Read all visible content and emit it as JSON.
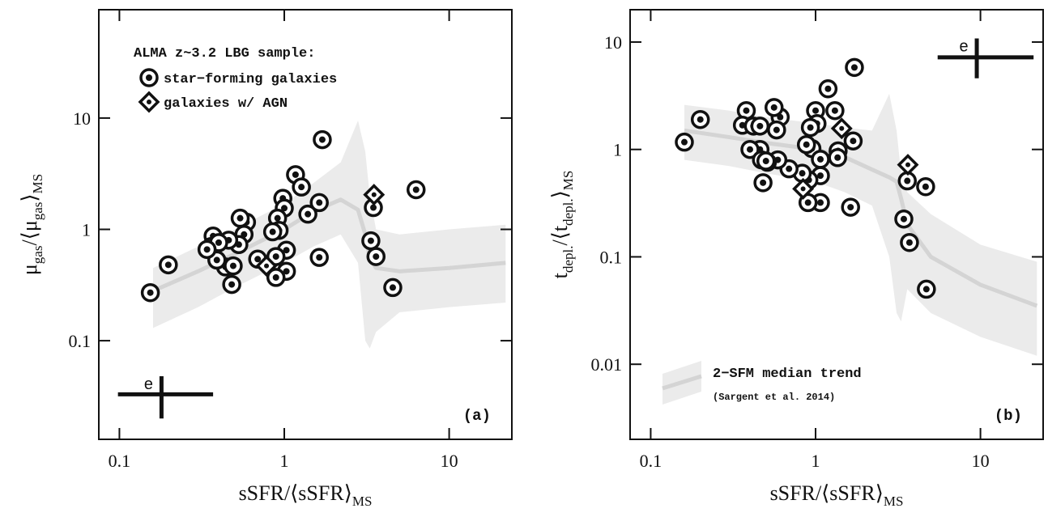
{
  "chart_data": [
    {
      "type": "scatter",
      "panel_label": "(a)",
      "xscale": "log",
      "yscale": "log",
      "xlabel": [
        "sSFR/⟨sSFR⟩",
        "MS"
      ],
      "ylabel": [
        "μ",
        "gas",
        "/⟨μ",
        "gas",
        "⟩",
        "MS"
      ],
      "xlim": [
        0.075,
        24
      ],
      "ylim": [
        0.013,
        94
      ],
      "xticks": [
        0.1,
        1,
        10
      ],
      "yticks": [
        0.1,
        1,
        10
      ],
      "legend_title": "ALMA z~3.2 LBG sample:",
      "series": [
        {
          "name": "star−forming galaxies",
          "marker": "circle",
          "color": "#111111",
          "x": [
            0.154,
            0.198,
            1.7,
            6.3,
            4.55,
            3.35,
            3.6,
            3.47,
            1.17,
            1.27,
            1.39,
            1.63,
            1.63,
            0.98,
            1.0,
            0.91,
            0.93,
            0.85,
            1.03,
            1.03,
            0.89,
            0.89,
            0.69,
            0.59,
            0.54,
            0.57,
            0.53,
            0.46,
            0.37,
            0.36,
            0.4,
            0.44,
            0.49,
            0.48,
            0.39,
            0.34
          ],
          "values": [
            0.27,
            0.48,
            6.4,
            2.27,
            0.3,
            0.79,
            0.57,
            1.57,
            3.1,
            2.4,
            1.37,
            1.74,
            0.56,
            1.9,
            1.55,
            1.26,
            0.98,
            0.95,
            0.65,
            0.42,
            0.57,
            0.37,
            0.54,
            1.16,
            1.26,
            0.9,
            0.73,
            0.8,
            0.87,
            0.7,
            0.76,
            0.46,
            0.47,
            0.32,
            0.53,
            0.66
          ]
        },
        {
          "name": "galaxies w/ AGN",
          "marker": "diamond",
          "color": "#111111",
          "x": [
            3.5,
            0.78
          ],
          "values": [
            2.05,
            0.47
          ]
        }
      ],
      "trend": {
        "x": [
          0.16,
          0.3,
          0.5,
          1,
          1.5,
          2.2,
          2.8,
          3.1,
          3.3,
          3.6,
          5,
          10,
          22
        ],
        "median": [
          0.28,
          0.42,
          0.6,
          1.0,
          1.45,
          1.85,
          1.5,
          0.9,
          0.55,
          0.45,
          0.42,
          0.45,
          0.5
        ],
        "upper": [
          0.45,
          0.7,
          1.0,
          1.7,
          2.6,
          4,
          9.5,
          5,
          2,
          1,
          0.9,
          1.0,
          1.1
        ],
        "lower": [
          0.13,
          0.2,
          0.3,
          0.5,
          0.7,
          0.9,
          0.5,
          0.1,
          0.085,
          0.12,
          0.18,
          0.2,
          0.22
        ]
      },
      "error_bar": {
        "label": "e",
        "x": 0.18,
        "y": 0.033,
        "xerr": [
          0.098,
          0.37
        ],
        "yerr": [
          0.02,
          0.048
        ]
      }
    },
    {
      "type": "scatter",
      "panel_label": "(b)",
      "xscale": "log",
      "yscale": "log",
      "xlabel": [
        "sSFR/⟨sSFR⟩",
        "MS"
      ],
      "ylabel": [
        "t",
        "depl.",
        "/⟨t",
        "depl.",
        "⟩",
        "MS"
      ],
      "xlim": [
        0.075,
        24
      ],
      "ylim": [
        0.002,
        20
      ],
      "xticks": [
        0.1,
        1,
        10
      ],
      "yticks": [
        0.01,
        0.1,
        1,
        10
      ],
      "series": [
        {
          "marker": "circle",
          "color": "#111111",
          "x": [
            0.16,
            0.2,
            1.72,
            4.65,
            3.6,
            3.43,
            3.71,
            4.7,
            1.63,
            1.69,
            1.37,
            1.31,
            1.36,
            1.19,
            1.0,
            1.02,
            0.93,
            0.95,
            0.88,
            1.07,
            1.07,
            1.07,
            0.91,
            0.9,
            0.83,
            0.69,
            0.59,
            0.51,
            0.46,
            0.61,
            0.56,
            0.58,
            0.38,
            0.36,
            0.42,
            0.46,
            0.4,
            0.47,
            0.48,
            0.5
          ],
          "values": [
            1.17,
            1.9,
            5.8,
            0.45,
            0.51,
            0.225,
            0.136,
            0.05,
            0.29,
            1.2,
            0.97,
            2.3,
            0.84,
            3.67,
            2.3,
            1.74,
            1.6,
            1.02,
            1.11,
            0.81,
            0.57,
            0.32,
            0.52,
            0.32,
            0.6,
            0.66,
            0.8,
            0.76,
            1.0,
            2.0,
            2.46,
            1.52,
            2.3,
            1.68,
            1.65,
            1.65,
            1.0,
            0.8,
            0.49,
            0.78
          ]
        },
        {
          "marker": "diamond",
          "color": "#111111",
          "x": [
            3.63,
            1.44,
            0.84
          ],
          "values": [
            0.72,
            1.57,
            0.43
          ]
        }
      ],
      "trend": {
        "name": "2−SFM median trend",
        "note": "(Sargent et al. 2014)",
        "x": [
          0.16,
          0.3,
          0.5,
          1,
          1.5,
          2.2,
          2.8,
          3.1,
          3.3,
          3.6,
          5,
          10,
          22
        ],
        "median": [
          1.5,
          1.3,
          1.15,
          1.0,
          0.85,
          0.65,
          0.55,
          0.5,
          0.35,
          0.2,
          0.1,
          0.055,
          0.035
        ],
        "upper": [
          2.6,
          2.3,
          2.0,
          1.75,
          1.6,
          1.5,
          3.3,
          1.5,
          0.6,
          0.4,
          0.25,
          0.13,
          0.09
        ],
        "lower": [
          0.8,
          0.7,
          0.6,
          0.5,
          0.4,
          0.3,
          0.1,
          0.03,
          0.025,
          0.05,
          0.03,
          0.018,
          0.012
        ]
      },
      "error_bar": {
        "label": "e",
        "x": 9.5,
        "y": 7.2,
        "xerr": [
          5.5,
          21
        ],
        "yerr": [
          4.6,
          10.8
        ]
      }
    }
  ]
}
